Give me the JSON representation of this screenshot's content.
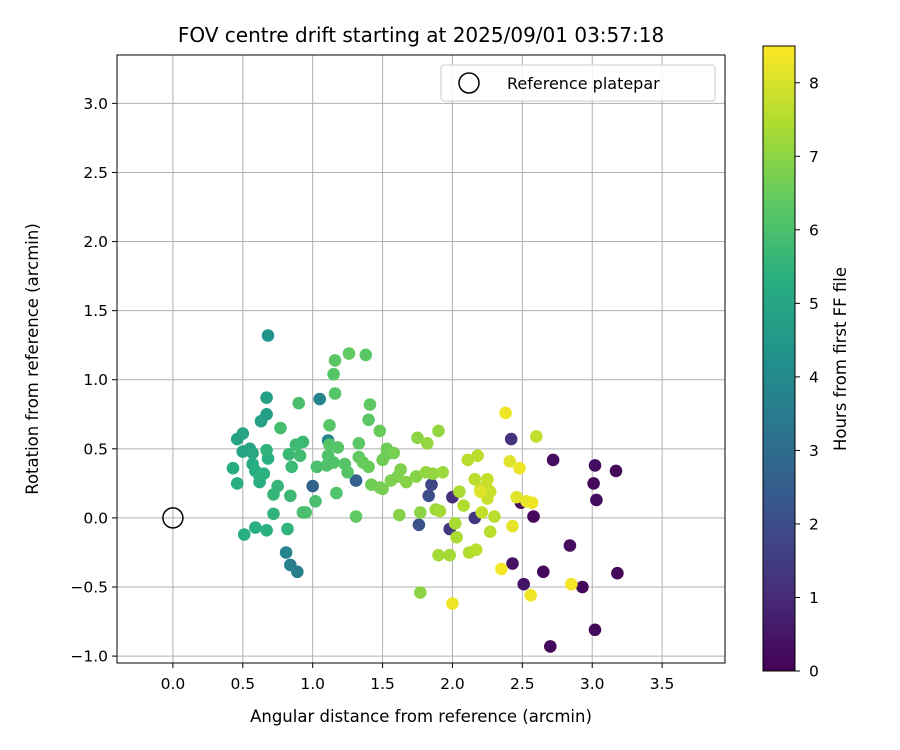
{
  "chart_data": {
    "type": "scatter",
    "title": "FOV centre drift starting at 2025/09/01 03:57:18",
    "xlabel": "Angular distance from reference (arcmin)",
    "ylabel": "Rotation from reference (arcmin)",
    "xlim": [
      -0.4,
      3.95
    ],
    "ylim": [
      -1.05,
      3.35
    ],
    "x_ticks": [
      0.0,
      0.5,
      1.0,
      1.5,
      2.0,
      2.5,
      3.0,
      3.5
    ],
    "x_tick_labels": [
      "0.0",
      "0.5",
      "1.0",
      "1.5",
      "2.0",
      "2.5",
      "3.0",
      "3.5"
    ],
    "y_ticks": [
      -1.0,
      -0.5,
      0.0,
      0.5,
      1.0,
      1.5,
      2.0,
      2.5,
      3.0
    ],
    "y_tick_labels": [
      "−1.0",
      "−0.5",
      "0.0",
      "0.5",
      "1.0",
      "1.5",
      "2.0",
      "2.5",
      "3.0"
    ],
    "grid": true,
    "legend": {
      "position": "top-right",
      "entries": [
        "Reference platepar"
      ]
    },
    "reference": {
      "x": 0.0,
      "y": 0.0,
      "label": "Reference platepar"
    },
    "colorbar": {
      "label": "Hours from first FF file",
      "min": 0,
      "max": 8.5,
      "ticks": [
        0,
        1,
        2,
        3,
        4,
        5,
        6,
        7,
        8
      ],
      "tick_labels": [
        "0",
        "1",
        "2",
        "3",
        "4",
        "5",
        "6",
        "7",
        "8"
      ],
      "colormap": "viridis"
    },
    "point_fields": [
      "x",
      "y",
      "hours"
    ],
    "points": [
      [
        2.7,
        -0.93,
        0.2
      ],
      [
        3.02,
        -0.81,
        0.2
      ],
      [
        2.93,
        -0.5,
        0.2
      ],
      [
        3.18,
        -0.4,
        0.2
      ],
      [
        2.65,
        -0.39,
        0.2
      ],
      [
        2.58,
        0.01,
        0.2
      ],
      [
        2.49,
        0.11,
        0.2
      ],
      [
        2.72,
        0.42,
        0.3
      ],
      [
        3.02,
        0.38,
        0.3
      ],
      [
        3.17,
        0.34,
        0.2
      ],
      [
        3.01,
        0.25,
        0.2
      ],
      [
        3.03,
        0.13,
        0.3
      ],
      [
        2.84,
        -0.2,
        0.3
      ],
      [
        2.43,
        -0.33,
        0.4
      ],
      [
        2.51,
        -0.48,
        0.5
      ],
      [
        2.42,
        0.57,
        1.2
      ],
      [
        2.0,
        0.15,
        1.1
      ],
      [
        2.16,
        0.0,
        1.3
      ],
      [
        1.98,
        -0.08,
        1.4
      ],
      [
        1.85,
        0.24,
        1.8
      ],
      [
        1.83,
        0.16,
        2.0
      ],
      [
        1.76,
        -0.05,
        2.2
      ],
      [
        1.31,
        0.27,
        2.6
      ],
      [
        1.0,
        0.23,
        2.7
      ],
      [
        0.84,
        -0.34,
        3.6
      ],
      [
        0.89,
        -0.39,
        3.6
      ],
      [
        0.81,
        -0.25,
        3.8
      ],
      [
        1.05,
        0.86,
        3.8
      ],
      [
        1.11,
        0.56,
        3.9
      ],
      [
        0.68,
        1.32,
        4.4
      ],
      [
        0.67,
        0.87,
        4.8
      ],
      [
        0.67,
        0.75,
        4.7
      ],
      [
        0.63,
        0.7,
        4.8
      ],
      [
        0.46,
        0.57,
        4.9
      ],
      [
        0.5,
        0.61,
        5.0
      ],
      [
        0.5,
        0.48,
        5.0
      ],
      [
        0.55,
        0.5,
        5.0
      ],
      [
        0.57,
        0.47,
        5.1
      ],
      [
        0.57,
        0.39,
        5.2
      ],
      [
        0.43,
        0.36,
        5.2
      ],
      [
        0.46,
        0.25,
        5.3
      ],
      [
        0.59,
        0.34,
        5.3
      ],
      [
        0.62,
        0.26,
        5.3
      ],
      [
        0.62,
        0.3,
        5.4
      ],
      [
        0.65,
        0.32,
        5.4
      ],
      [
        0.68,
        0.43,
        5.3
      ],
      [
        0.67,
        0.49,
        5.5
      ],
      [
        0.51,
        -0.12,
        5.3
      ],
      [
        0.59,
        -0.07,
        5.3
      ],
      [
        0.67,
        -0.09,
        5.4
      ],
      [
        0.72,
        0.03,
        5.5
      ],
      [
        0.82,
        -0.08,
        5.5
      ],
      [
        0.72,
        0.17,
        5.6
      ],
      [
        0.75,
        0.23,
        5.6
      ],
      [
        0.84,
        0.16,
        5.7
      ],
      [
        0.85,
        0.37,
        5.7
      ],
      [
        0.83,
        0.46,
        5.7
      ],
      [
        0.88,
        0.53,
        5.8
      ],
      [
        0.91,
        0.45,
        5.8
      ],
      [
        0.93,
        0.55,
        5.7
      ],
      [
        0.77,
        0.65,
        5.9
      ],
      [
        0.9,
        0.83,
        6.0
      ],
      [
        0.95,
        0.04,
        6.0
      ],
      [
        0.93,
        0.04,
        6.0
      ],
      [
        1.02,
        0.12,
        6.0
      ],
      [
        1.03,
        0.37,
        6.0
      ],
      [
        1.1,
        0.38,
        6.1
      ],
      [
        1.11,
        0.45,
        6.1
      ],
      [
        1.15,
        0.4,
        6.1
      ],
      [
        1.12,
        0.53,
        6.2
      ],
      [
        1.18,
        0.51,
        6.2
      ],
      [
        1.16,
        0.9,
        6.2
      ],
      [
        1.15,
        1.04,
        6.2
      ],
      [
        1.16,
        1.14,
        6.3
      ],
      [
        1.26,
        1.19,
        6.4
      ],
      [
        1.38,
        1.18,
        6.3
      ],
      [
        1.12,
        0.67,
        6.2
      ],
      [
        1.17,
        0.18,
        6.1
      ],
      [
        1.23,
        0.39,
        6.2
      ],
      [
        1.25,
        0.33,
        6.2
      ],
      [
        1.31,
        0.01,
        6.4
      ],
      [
        1.33,
        0.44,
        6.4
      ],
      [
        1.33,
        0.54,
        6.3
      ],
      [
        1.36,
        0.4,
        6.5
      ],
      [
        1.4,
        0.37,
        6.5
      ],
      [
        1.4,
        0.71,
        6.3
      ],
      [
        1.41,
        0.82,
        6.4
      ],
      [
        1.42,
        0.24,
        6.6
      ],
      [
        1.48,
        0.22,
        6.7
      ],
      [
        1.5,
        0.21,
        6.7
      ],
      [
        1.48,
        0.63,
        6.5
      ],
      [
        1.5,
        0.42,
        6.6
      ],
      [
        1.53,
        0.46,
        6.6
      ],
      [
        1.53,
        0.5,
        6.6
      ],
      [
        1.56,
        0.27,
        6.8
      ],
      [
        1.58,
        0.47,
        6.7
      ],
      [
        1.61,
        0.3,
        6.8
      ],
      [
        1.62,
        0.02,
        6.9
      ],
      [
        1.63,
        0.35,
        6.8
      ],
      [
        1.67,
        0.26,
        6.9
      ],
      [
        1.75,
        0.58,
        7.0
      ],
      [
        1.74,
        0.3,
        6.9
      ],
      [
        1.77,
        0.04,
        7.0
      ],
      [
        1.81,
        0.33,
        7.1
      ],
      [
        1.82,
        0.54,
        7.1
      ],
      [
        1.86,
        0.32,
        7.1
      ],
      [
        1.9,
        0.63,
        7.1
      ],
      [
        1.77,
        -0.54,
        7.0
      ],
      [
        1.88,
        0.06,
        7.2
      ],
      [
        1.91,
        0.05,
        7.3
      ],
      [
        1.9,
        -0.27,
        7.3
      ],
      [
        1.93,
        0.33,
        7.2
      ],
      [
        1.98,
        -0.27,
        7.3
      ],
      [
        2.02,
        -0.04,
        7.4
      ],
      [
        2.03,
        -0.14,
        7.4
      ],
      [
        2.05,
        0.19,
        7.4
      ],
      [
        2.08,
        0.09,
        7.5
      ],
      [
        2.11,
        0.42,
        7.6
      ],
      [
        2.12,
        -0.25,
        7.5
      ],
      [
        2.16,
        0.28,
        7.6
      ],
      [
        2.17,
        -0.23,
        7.6
      ],
      [
        2.18,
        0.45,
        7.6
      ],
      [
        2.2,
        0.21,
        7.7
      ],
      [
        2.21,
        0.04,
        7.7
      ],
      [
        2.25,
        0.28,
        7.7
      ],
      [
        2.24,
        0.23,
        7.8
      ],
      [
        2.25,
        0.14,
        7.8
      ],
      [
        2.27,
        0.19,
        7.8
      ],
      [
        2.27,
        -0.1,
        7.6
      ],
      [
        2.3,
        0.01,
        7.6
      ],
      [
        2.2,
        0.19,
        8.1
      ],
      [
        2.0,
        -0.62,
        8.3
      ],
      [
        2.41,
        0.41,
        8.1
      ],
      [
        2.43,
        -0.06,
        8.2
      ],
      [
        2.46,
        0.15,
        8.1
      ],
      [
        2.48,
        0.36,
        8.3
      ],
      [
        2.53,
        0.12,
        8.2
      ],
      [
        2.57,
        0.11,
        8.3
      ],
      [
        2.6,
        0.59,
        7.7
      ],
      [
        2.38,
        0.76,
        8.3
      ],
      [
        2.35,
        -0.37,
        8.4
      ],
      [
        2.56,
        -0.56,
        8.3
      ],
      [
        2.85,
        -0.48,
        8.4
      ]
    ]
  }
}
